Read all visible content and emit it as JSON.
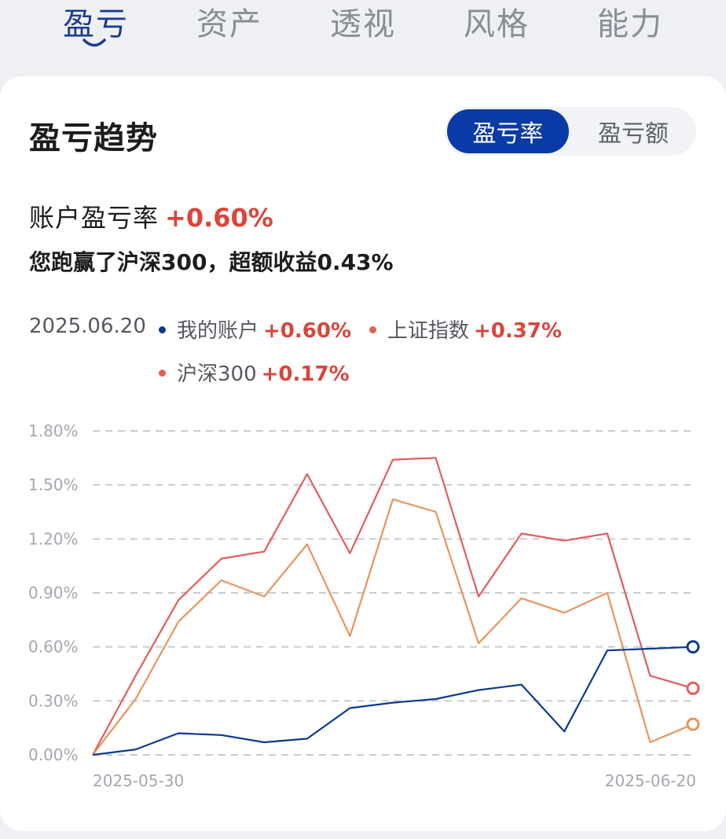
{
  "tabs": [
    {
      "label": "盈亏",
      "active": true
    },
    {
      "label": "资产",
      "active": false
    },
    {
      "label": "透视",
      "active": false
    },
    {
      "label": "风格",
      "active": false
    },
    {
      "label": "能力",
      "active": false
    }
  ],
  "card": {
    "title": "盈亏趋势",
    "toggle": {
      "on": "盈亏率",
      "off": "盈亏额"
    },
    "rate_label": "账户盈亏率",
    "rate_value": "+0.60%",
    "beat_text": "您跑赢了沪深300，超额收益0.43%"
  },
  "legend": {
    "date": "2025.06.20",
    "items": [
      {
        "name": "我的账户",
        "value": "+0.60%",
        "color": "#0b3a91"
      },
      {
        "name": "上证指数",
        "value": "+0.37%",
        "color": "#e35d5b"
      },
      {
        "name": "沪深300",
        "value": "+0.17%",
        "color": "#e8945c"
      }
    ]
  },
  "chart_data": {
    "type": "line",
    "x_start_label": "2025-05-30",
    "x_end_label": "2025-06-20",
    "y_ticks": [
      "1.80%",
      "1.50%",
      "1.20%",
      "0.90%",
      "0.60%",
      "0.30%",
      "0.00%"
    ],
    "ylim": [
      0,
      1.8
    ],
    "grid": true,
    "series": [
      {
        "name": "上证指数",
        "color": "#e35d5b",
        "values": [
          0.0,
          0.44,
          0.86,
          1.09,
          1.13,
          1.56,
          1.12,
          1.64,
          1.65,
          0.88,
          1.23,
          1.19,
          1.23,
          0.44,
          0.37
        ]
      },
      {
        "name": "沪深300",
        "color": "#e8945c",
        "values": [
          0.0,
          0.31,
          0.74,
          0.97,
          0.88,
          1.17,
          0.66,
          1.42,
          1.35,
          0.62,
          0.87,
          0.79,
          0.9,
          0.07,
          0.17
        ]
      },
      {
        "name": "我的账户",
        "color": "#0b3a91",
        "values": [
          0.0,
          0.03,
          0.12,
          0.11,
          0.07,
          0.09,
          0.26,
          0.29,
          0.31,
          0.36,
          0.39,
          0.13,
          0.58,
          0.59,
          0.6
        ]
      }
    ]
  }
}
